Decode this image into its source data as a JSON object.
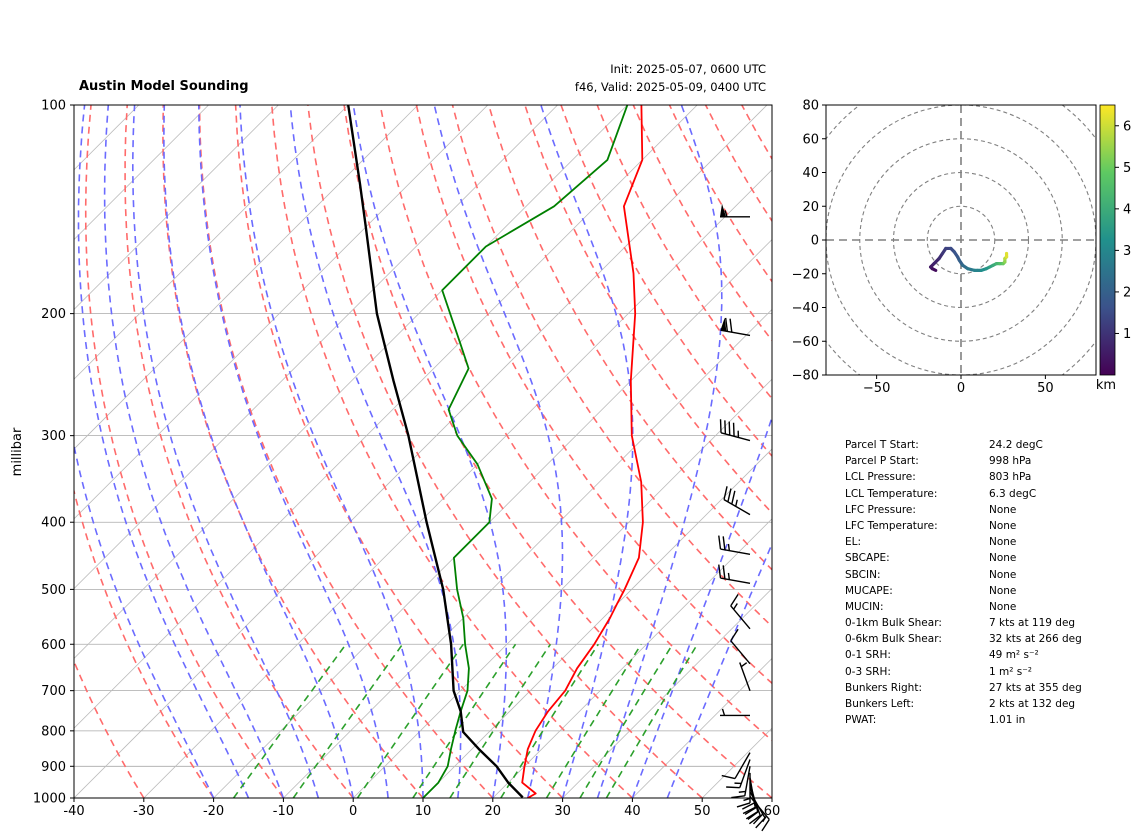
{
  "title": "Austin Model Sounding",
  "init_text": "Init: 2025-05-07, 0600 UTC",
  "valid_text": "f46, Valid: 2025-05-09, 0400 UTC",
  "colors": {
    "temperature": "#ff0000",
    "dewpoint": "#008000",
    "parcel": "#000000",
    "dry_adiabat": "#ff6b6b",
    "moist_adiabat": "#6b6bff",
    "mixing_ratio": "#2ca02c",
    "isotherm": "#bbbbbb",
    "isobar": "#aaaaaa"
  },
  "chart_data": [
    {
      "type": "line",
      "subtype": "skew-t",
      "title": "Austin Model Sounding",
      "ylabel": "millibar",
      "xlim": [
        -40,
        60
      ],
      "ylim": [
        1000,
        100
      ],
      "yscale": "log",
      "x_ticks": [
        -40,
        -30,
        -20,
        -10,
        0,
        10,
        20,
        30,
        40,
        50,
        60
      ],
      "y_ticks": [
        1000,
        900,
        800,
        700,
        600,
        500,
        400,
        300,
        200,
        100
      ],
      "series": [
        {
          "name": "temperature",
          "points": [
            [
              1000,
              25
            ],
            [
              985,
              25.5
            ],
            [
              950,
              22
            ],
            [
              900,
              20
            ],
            [
              850,
              18
            ],
            [
              800,
              16.5
            ],
            [
              750,
              15.5
            ],
            [
              700,
              15
            ],
            [
              650,
              13.5
            ],
            [
              600,
              12.5
            ],
            [
              550,
              11
            ],
            [
              525,
              10
            ],
            [
              500,
              9
            ],
            [
              450,
              6.5
            ],
            [
              400,
              2
            ],
            [
              350,
              -4
            ],
            [
              300,
              -12
            ],
            [
              250,
              -20
            ],
            [
              200,
              -29
            ],
            [
              175,
              -35
            ],
            [
              140,
              -46
            ],
            [
              120,
              -50
            ],
            [
              100,
              -58
            ]
          ]
        },
        {
          "name": "dewpoint",
          "points": [
            [
              1000,
              10
            ],
            [
              950,
              10
            ],
            [
              900,
              9
            ],
            [
              850,
              7
            ],
            [
              800,
              5
            ],
            [
              750,
              3
            ],
            [
              700,
              1
            ],
            [
              650,
              -2
            ],
            [
              600,
              -6
            ],
            [
              550,
              -10
            ],
            [
              500,
              -15
            ],
            [
              450,
              -20
            ],
            [
              400,
              -20
            ],
            [
              370,
              -23
            ],
            [
              330,
              -30
            ],
            [
              300,
              -37
            ],
            [
              275,
              -42
            ],
            [
              240,
              -45
            ],
            [
              220,
              -50
            ],
            [
              185,
              -60
            ],
            [
              160,
              -60
            ],
            [
              140,
              -56
            ],
            [
              120,
              -55
            ],
            [
              100,
              -60
            ]
          ]
        },
        {
          "name": "parcel",
          "points": [
            [
              998,
              24.2
            ],
            [
              950,
              20
            ],
            [
              900,
              16
            ],
            [
              850,
              11
            ],
            [
              803,
              6.3
            ],
            [
              750,
              3
            ],
            [
              700,
              -1
            ],
            [
              600,
              -8
            ],
            [
              500,
              -17
            ],
            [
              400,
              -29
            ],
            [
              300,
              -44
            ],
            [
              250,
              -54
            ],
            [
              200,
              -66
            ],
            [
              150,
              -80
            ],
            [
              130,
              -87
            ],
            [
              100,
              -100
            ]
          ]
        }
      ],
      "wind_barbs": [
        {
          "p": 995,
          "speed_kt": 15,
          "dir_deg": 140
        },
        {
          "p": 980,
          "speed_kt": 20,
          "dir_deg": 150
        },
        {
          "p": 965,
          "speed_kt": 20,
          "dir_deg": 160
        },
        {
          "p": 950,
          "speed_kt": 20,
          "dir_deg": 165
        },
        {
          "p": 935,
          "speed_kt": 20,
          "dir_deg": 170
        },
        {
          "p": 920,
          "speed_kt": 15,
          "dir_deg": 180
        },
        {
          "p": 900,
          "speed_kt": 15,
          "dir_deg": 190
        },
        {
          "p": 880,
          "speed_kt": 15,
          "dir_deg": 200
        },
        {
          "p": 860,
          "speed_kt": 10,
          "dir_deg": 210
        },
        {
          "p": 760,
          "speed_kt": 5,
          "dir_deg": 270
        },
        {
          "p": 700,
          "speed_kt": 5,
          "dir_deg": 340
        },
        {
          "p": 640,
          "speed_kt": 10,
          "dir_deg": 320
        },
        {
          "p": 570,
          "speed_kt": 15,
          "dir_deg": 320
        },
        {
          "p": 490,
          "speed_kt": 25,
          "dir_deg": 280
        },
        {
          "p": 445,
          "speed_kt": 25,
          "dir_deg": 280
        },
        {
          "p": 390,
          "speed_kt": 35,
          "dir_deg": 300
        },
        {
          "p": 305,
          "speed_kt": 45,
          "dir_deg": 285
        },
        {
          "p": 215,
          "speed_kt": 70,
          "dir_deg": 280
        },
        {
          "p": 145,
          "speed_kt": 55,
          "dir_deg": 270
        }
      ]
    },
    {
      "type": "line",
      "subtype": "hodograph",
      "xlim": [
        -80,
        80
      ],
      "ylim": [
        -80,
        80
      ],
      "x_ticks": [
        -50,
        0,
        50
      ],
      "y_ticks": [
        -80,
        -60,
        -40,
        -20,
        0,
        20,
        40,
        60,
        80
      ],
      "rings": [
        20,
        40,
        60,
        80,
        100
      ],
      "colorbar": {
        "label": "km",
        "ticks": [
          1,
          2,
          3,
          4,
          5,
          6
        ],
        "range": [
          0,
          6.5
        ]
      },
      "points": [
        [
          -15,
          -18,
          0.1
        ],
        [
          -17,
          -17,
          0.2
        ],
        [
          -18,
          -16,
          0.3
        ],
        [
          -16,
          -14,
          0.5
        ],
        [
          -13,
          -11,
          0.7
        ],
        [
          -11,
          -8,
          0.9
        ],
        [
          -9,
          -5,
          1.1
        ],
        [
          -6,
          -5,
          1.3
        ],
        [
          -4,
          -7,
          1.5
        ],
        [
          -2,
          -10,
          1.7
        ],
        [
          -1,
          -12,
          1.8
        ],
        [
          1,
          -15,
          2.0
        ],
        [
          4,
          -17,
          2.3
        ],
        [
          8,
          -18,
          2.6
        ],
        [
          12,
          -18,
          2.9
        ],
        [
          15,
          -17,
          3.2
        ],
        [
          17,
          -16,
          3.4
        ],
        [
          19,
          -15,
          3.7
        ],
        [
          21,
          -14,
          4.0
        ],
        [
          23,
          -14,
          4.3
        ],
        [
          25,
          -14,
          4.6
        ],
        [
          26,
          -13,
          5.0
        ],
        [
          26,
          -11,
          5.4
        ],
        [
          27,
          -10,
          5.8
        ],
        [
          27,
          -8,
          6.2
        ]
      ]
    }
  ],
  "stats": [
    {
      "label": "Parcel T Start:",
      "value": "24.2 degC"
    },
    {
      "label": "Parcel P Start:",
      "value": "998 hPa"
    },
    {
      "label": "LCL Pressure:",
      "value": "803 hPa"
    },
    {
      "label": "LCL Temperature:",
      "value": "6.3 degC"
    },
    {
      "label": "LFC Pressure:",
      "value": "None"
    },
    {
      "label": "LFC Temperature:",
      "value": "None"
    },
    {
      "label": "EL:",
      "value": "None"
    },
    {
      "label": "SBCAPE:",
      "value": "None"
    },
    {
      "label": "SBCIN:",
      "value": "None"
    },
    {
      "label": "MUCAPE:",
      "value": "None"
    },
    {
      "label": "MUCIN:",
      "value": "None"
    },
    {
      "label": "0-1km Bulk Shear:",
      "value": "7 kts at 119 deg"
    },
    {
      "label": "0-6km Bulk Shear:",
      "value": "32 kts at 266 deg"
    },
    {
      "label": "0-1 SRH:",
      "value": "49 m² s⁻²"
    },
    {
      "label": "0-3 SRH:",
      "value": "1 m² s⁻²"
    },
    {
      "label": "Bunkers Right:",
      "value": "27 kts at 355 deg"
    },
    {
      "label": "Bunkers Left:",
      "value": "2 kts at 132 deg"
    },
    {
      "label": "PWAT:",
      "value": "1.01 in"
    }
  ]
}
